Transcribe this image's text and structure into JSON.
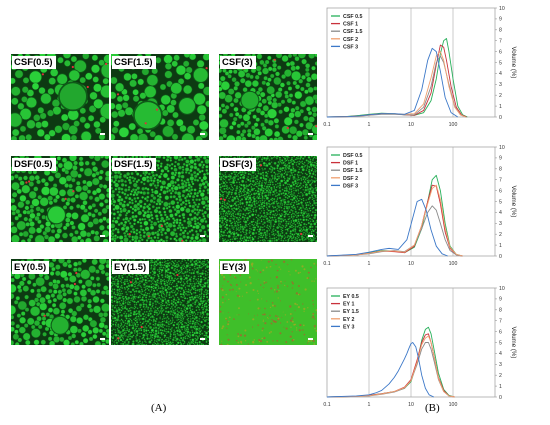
{
  "figure": {
    "panel_a_letter": "(A)",
    "panel_b_letter": "(B)"
  },
  "micrographs": [
    {
      "label": "CSF(0.5)",
      "size": "large"
    },
    {
      "label": "CSF(1.5)",
      "size": "large"
    },
    {
      "label": "CSF(3)",
      "size": "medium"
    },
    {
      "label": "DSF(0.5)",
      "size": "medium"
    },
    {
      "label": "DSF(1.5)",
      "size": "small"
    },
    {
      "label": "DSF(3)",
      "size": "tiny"
    },
    {
      "label": "EY(0.5)",
      "size": "medium"
    },
    {
      "label": "EY(1.5)",
      "size": "tiny"
    },
    {
      "label": "EY(3)",
      "size": "none"
    }
  ],
  "colors": {
    "micrograph_green": "#2bd43a",
    "micrograph_dark": "#0d3a12",
    "series": [
      "#27b05a",
      "#c9313b",
      "#8a8a8a",
      "#f0a070",
      "#3c78c8"
    ]
  },
  "chart_data": [
    {
      "type": "line",
      "xlabel": "Granule diameter(μm)",
      "ylabel": "Volume (%)",
      "xscale": "log",
      "xlim": [
        0.1,
        1000
      ],
      "ylim": [
        0,
        10
      ],
      "x_ticks": [
        "0.1",
        "1",
        "10",
        "100"
      ],
      "y_ticks": [
        "0",
        "1",
        "2",
        "3",
        "4",
        "5",
        "6",
        "7",
        "8",
        "9",
        "10"
      ],
      "grid": "vertical",
      "legend": "top-left",
      "series": [
        {
          "name": "CSF 0.5",
          "x": [
            0.1,
            0.3,
            0.6,
            1,
            2,
            4,
            7,
            12,
            20,
            30,
            40,
            50,
            60,
            70,
            80,
            100,
            130,
            170,
            220
          ],
          "y": [
            0,
            0.05,
            0.15,
            0.25,
            0.35,
            0.3,
            0.2,
            0.15,
            0.4,
            1.5,
            3.5,
            5.8,
            7.0,
            7.2,
            6.0,
            3.5,
            1.0,
            0.2,
            0
          ]
        },
        {
          "name": "CSF 1",
          "x": [
            0.1,
            0.3,
            0.6,
            1,
            2,
            4,
            7,
            12,
            20,
            30,
            40,
            50,
            60,
            70,
            90,
            120,
            160,
            210
          ],
          "y": [
            0,
            0.04,
            0.1,
            0.2,
            0.3,
            0.28,
            0.2,
            0.15,
            0.6,
            2.2,
            4.8,
            6.6,
            6.4,
            5.2,
            2.8,
            0.9,
            0.2,
            0
          ]
        },
        {
          "name": "CSF 1.5",
          "x": [
            0.1,
            0.3,
            0.6,
            1,
            2,
            4,
            7,
            12,
            20,
            30,
            40,
            50,
            60,
            80,
            110,
            150,
            200
          ],
          "y": [
            0,
            0.03,
            0.08,
            0.15,
            0.25,
            0.25,
            0.2,
            0.2,
            0.9,
            2.8,
            5.0,
            5.6,
            5.0,
            3.0,
            1.0,
            0.2,
            0
          ]
        },
        {
          "name": "CSF 2",
          "x": [
            0.1,
            0.3,
            0.6,
            1,
            2,
            4,
            7,
            12,
            20,
            30,
            40,
            50,
            60,
            80,
            110,
            150,
            200
          ],
          "y": [
            0,
            0.03,
            0.08,
            0.18,
            0.3,
            0.3,
            0.25,
            0.3,
            1.2,
            3.6,
            5.6,
            6.0,
            5.2,
            2.8,
            0.9,
            0.2,
            0
          ]
        },
        {
          "name": "CSF 3",
          "x": [
            0.1,
            0.3,
            0.6,
            1,
            2,
            4,
            7,
            12,
            18,
            25,
            32,
            40,
            50,
            65,
            90,
            130
          ],
          "y": [
            0,
            0.03,
            0.1,
            0.2,
            0.3,
            0.3,
            0.25,
            0.6,
            2.5,
            5.2,
            6.3,
            6.0,
            4.2,
            1.8,
            0.4,
            0
          ]
        }
      ]
    },
    {
      "type": "line",
      "xlabel": "Granule diameter(μm)",
      "ylabel": "Volume (%)",
      "xscale": "log",
      "xlim": [
        0.1,
        1000
      ],
      "ylim": [
        0,
        10
      ],
      "x_ticks": [
        "0.1",
        "1",
        "10",
        "100"
      ],
      "y_ticks": [
        "0",
        "1",
        "2",
        "3",
        "4",
        "5",
        "6",
        "7",
        "8",
        "9",
        "10"
      ],
      "grid": "vertical",
      "legend": "top-left",
      "series": [
        {
          "name": "DSF 0.5",
          "x": [
            0.1,
            0.5,
            1,
            2,
            4,
            7,
            12,
            18,
            25,
            32,
            40,
            50,
            65,
            85,
            120,
            170
          ],
          "y": [
            0,
            0.1,
            0.3,
            0.5,
            0.45,
            0.3,
            0.8,
            2.5,
            5.0,
            7.0,
            7.4,
            6.0,
            3.0,
            0.9,
            0.15,
            0
          ]
        },
        {
          "name": "DSF 1",
          "x": [
            0.1,
            0.5,
            1,
            2,
            4,
            7,
            12,
            18,
            25,
            32,
            40,
            50,
            65,
            85,
            120,
            170
          ],
          "y": [
            0,
            0.1,
            0.25,
            0.45,
            0.4,
            0.3,
            0.9,
            2.8,
            5.0,
            6.5,
            6.4,
            4.8,
            2.2,
            0.7,
            0.1,
            0
          ]
        },
        {
          "name": "DSF 1.5",
          "x": [
            0.1,
            0.5,
            1,
            2,
            4,
            7,
            12,
            18,
            25,
            32,
            40,
            50,
            65,
            85,
            120,
            170
          ],
          "y": [
            0,
            0.1,
            0.2,
            0.4,
            0.5,
            0.4,
            1.0,
            2.5,
            4.0,
            4.6,
            4.2,
            3.0,
            1.5,
            0.5,
            0.1,
            0
          ]
        },
        {
          "name": "DSF 2",
          "x": [
            0.1,
            0.5,
            1,
            2,
            4,
            7,
            12,
            18,
            25,
            32,
            40,
            50,
            65,
            85,
            120,
            170
          ],
          "y": [
            0,
            0.1,
            0.25,
            0.45,
            0.45,
            0.35,
            1.0,
            2.8,
            4.8,
            6.2,
            6.5,
            5.2,
            2.6,
            0.8,
            0.15,
            0
          ]
        },
        {
          "name": "DSF 3",
          "x": [
            0.1,
            0.5,
            1,
            2,
            3,
            5,
            8,
            11,
            14,
            18,
            23,
            30,
            40,
            55,
            75
          ],
          "y": [
            0,
            0.15,
            0.35,
            0.6,
            0.7,
            0.6,
            1.5,
            3.5,
            5.0,
            5.2,
            4.2,
            2.4,
            0.9,
            0.2,
            0
          ]
        }
      ]
    },
    {
      "type": "line",
      "xlabel": "Granule diameter(μm)",
      "ylabel": "Volume (%)",
      "xscale": "log",
      "xlim": [
        0.1,
        1000
      ],
      "ylim": [
        0,
        10
      ],
      "x_ticks": [
        "0.1",
        "1",
        "10",
        "100"
      ],
      "y_ticks": [
        "0",
        "1",
        "2",
        "3",
        "4",
        "5",
        "6",
        "7",
        "8",
        "9",
        "10"
      ],
      "grid": "vertical",
      "legend": "top-left",
      "series": [
        {
          "name": "EY 0.5",
          "x": [
            0.1,
            0.5,
            1,
            2,
            4,
            7,
            10,
            14,
            18,
            22,
            26,
            30,
            36,
            45,
            60,
            80,
            110
          ],
          "y": [
            0,
            0.05,
            0.15,
            0.3,
            0.5,
            0.8,
            1.4,
            3.2,
            5.2,
            6.2,
            6.4,
            5.8,
            4.2,
            2.2,
            0.7,
            0.15,
            0
          ]
        },
        {
          "name": "EY 1",
          "x": [
            0.1,
            0.5,
            1,
            2,
            4,
            7,
            10,
            14,
            18,
            22,
            26,
            30,
            36,
            45,
            60,
            80,
            110
          ],
          "y": [
            0,
            0.05,
            0.15,
            0.3,
            0.5,
            0.9,
            1.6,
            3.4,
            5.0,
            5.7,
            5.8,
            5.0,
            3.6,
            1.8,
            0.6,
            0.1,
            0
          ]
        },
        {
          "name": "EY 1.5",
          "x": [
            0.1,
            0.5,
            1,
            2,
            4,
            7,
            10,
            14,
            18,
            22,
            26,
            30,
            36,
            45,
            60,
            80,
            110
          ],
          "y": [
            0,
            0.05,
            0.1,
            0.25,
            0.45,
            0.8,
            1.5,
            3.0,
            4.4,
            5.0,
            5.0,
            4.4,
            3.2,
            1.6,
            0.5,
            0.1,
            0
          ]
        },
        {
          "name": "EY 2",
          "x": [
            0.1,
            0.5,
            1,
            2,
            4,
            7,
            10,
            14,
            18,
            22,
            26,
            30,
            36,
            45,
            60,
            80,
            110
          ],
          "y": [
            0,
            0.05,
            0.12,
            0.28,
            0.5,
            0.85,
            1.5,
            3.2,
            4.8,
            5.4,
            5.6,
            5.0,
            3.6,
            1.7,
            0.5,
            0.1,
            0
          ]
        },
        {
          "name": "EY 3",
          "x": [
            0.1,
            0.5,
            1,
            1.5,
            2,
            3,
            4,
            5,
            6,
            7,
            8,
            9,
            10,
            11,
            13,
            15,
            18,
            22,
            27,
            35
          ],
          "y": [
            0,
            0.1,
            0.2,
            0.4,
            0.6,
            1.2,
            1.8,
            2.4,
            3.0,
            3.5,
            4.0,
            4.5,
            4.9,
            5.0,
            4.6,
            3.6,
            2.0,
            0.8,
            0.2,
            0
          ]
        }
      ]
    }
  ]
}
